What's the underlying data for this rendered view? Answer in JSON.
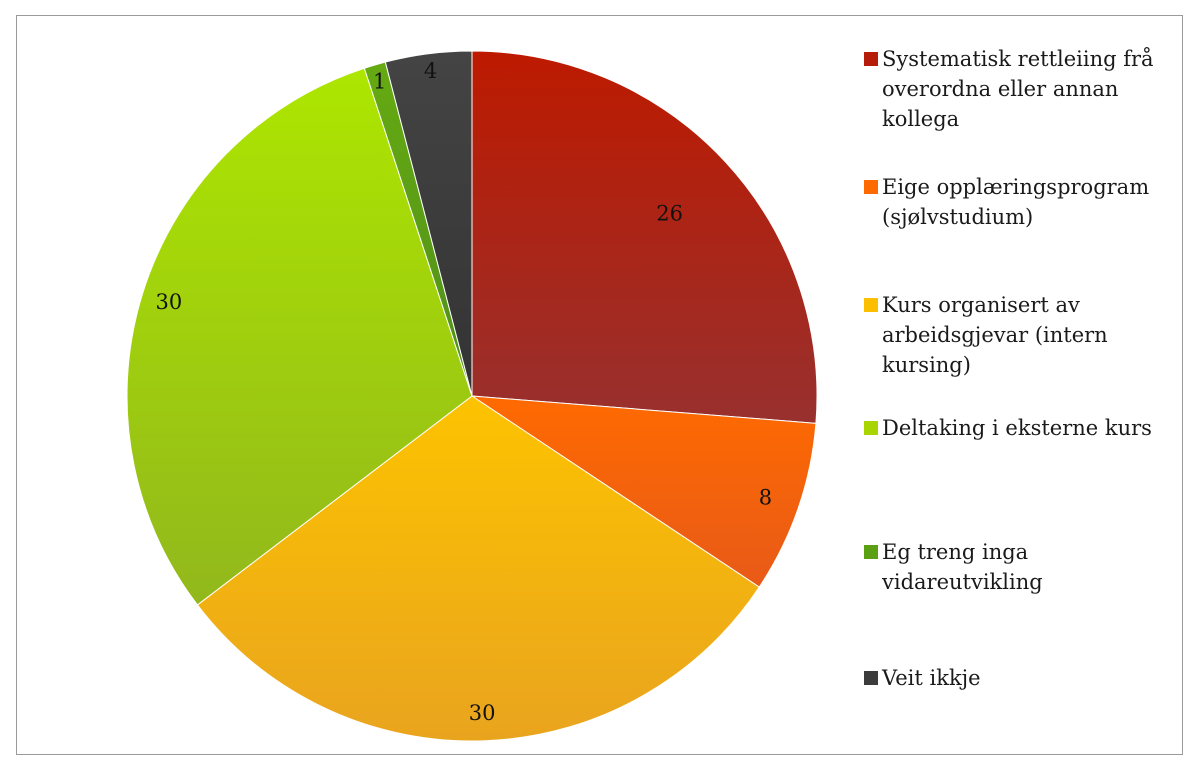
{
  "chart_data": {
    "type": "pie",
    "title": "",
    "categories": [
      "Systematisk rettleiing frå overordna eller annan kollega",
      "Eige opplæringsprogram (sjølvstudium)",
      "Kurs organisert av arbeidsgjevar (intern kursing)",
      "Deltaking i eksterne kurs",
      "Eg treng inga vidareutvikling",
      "Veit ikkje"
    ],
    "values": [
      26,
      8,
      30,
      30,
      1,
      4
    ],
    "data_labels": [
      "26",
      "8",
      "30",
      "30",
      "1",
      "4"
    ],
    "colors": [
      "#b51d0a",
      "#ff6a00",
      "#fbbf00",
      "#a8d400",
      "#5aa012",
      "#3c3c3c"
    ],
    "legend_position": "right",
    "grid": false
  },
  "legend": {
    "items": [
      {
        "label": "Systematisk rettleiing frå overordna eller annan kollega",
        "color": "#b51d0a"
      },
      {
        "label": "Eige opplæringsprogram (sjølvstudium)",
        "color": "#ff6a00"
      },
      {
        "label": "Kurs organisert av arbeidsgjevar (intern kursing)",
        "color": "#fbbf00"
      },
      {
        "label": "Deltaking i eksterne kurs",
        "color": "#a8d400"
      },
      {
        "label": "Eg treng inga vidareutvikling",
        "color": "#5aa012"
      },
      {
        "label": "Veit ikkje",
        "color": "#3c3c3c"
      }
    ]
  }
}
